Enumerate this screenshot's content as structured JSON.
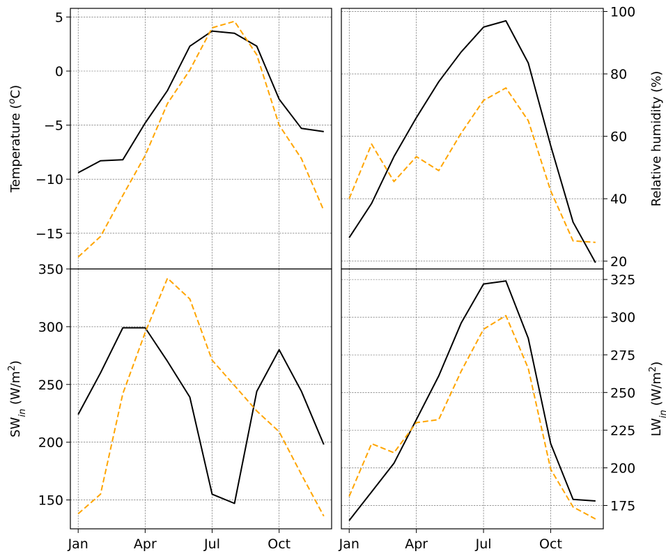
{
  "chart_data": [
    {
      "type": "line",
      "panel": "top-left",
      "ylabel_main": "Temperature (",
      "ylabel_super": "o",
      "ylabel_rest": "C)",
      "ylim": [
        -18.3,
        5.8
      ],
      "yticks": [
        5,
        0,
        -5,
        -10,
        -15
      ],
      "ytick_labels": [
        "5",
        "0",
        "−5",
        "−10",
        "−15"
      ],
      "yaxis_side": "left",
      "x": [
        1,
        2,
        3,
        4,
        5,
        6,
        7,
        8,
        9,
        10,
        11,
        12
      ],
      "series": [
        {
          "color": "#000000",
          "style": "solid",
          "values": [
            -9.4,
            -8.3,
            -8.2,
            -4.8,
            -1.8,
            2.3,
            3.7,
            3.5,
            2.3,
            -2.6,
            -5.3,
            -5.6
          ]
        },
        {
          "color": "#ffa500",
          "style": "dashed",
          "values": [
            -17.2,
            -15.3,
            -11.5,
            -7.8,
            -3.0,
            0.1,
            4.0,
            4.6,
            1.5,
            -5.0,
            -8.1,
            -12.9
          ]
        }
      ],
      "grid": true
    },
    {
      "type": "line",
      "panel": "top-right",
      "ylabel_main": "Relative humidity (%)",
      "ylim": [
        17.5,
        101
      ],
      "yticks": [
        100,
        80,
        60,
        40,
        20
      ],
      "ytick_labels": [
        "100",
        "80",
        "60",
        "40",
        "20"
      ],
      "yaxis_side": "right",
      "x": [
        1,
        2,
        3,
        4,
        5,
        6,
        7,
        8,
        9,
        10,
        11,
        12
      ],
      "series": [
        {
          "color": "#000000",
          "style": "solid",
          "values": [
            27.5,
            38.5,
            53.5,
            66.0,
            77.5,
            87.0,
            95.0,
            97.0,
            83.5,
            57.0,
            32.5,
            19.5
          ]
        },
        {
          "color": "#ffa500",
          "style": "dashed",
          "values": [
            40.0,
            57.5,
            45.5,
            53.5,
            49.0,
            61.0,
            71.5,
            75.5,
            65.0,
            42.5,
            26.5,
            26.0
          ]
        }
      ],
      "grid": true
    },
    {
      "type": "line",
      "panel": "bottom-left",
      "ylabel_main": "SW",
      "ylabel_sub": "in",
      "ylabel_rest": " (W/m",
      "ylabel_super": "2",
      "ylabel_close": ")",
      "ylim": [
        125,
        350
      ],
      "yticks": [
        350,
        300,
        250,
        200,
        150
      ],
      "ytick_labels": [
        "350",
        "300",
        "250",
        "200",
        "150"
      ],
      "yaxis_side": "left",
      "x": [
        1,
        2,
        3,
        4,
        5,
        6,
        7,
        8,
        9,
        10,
        11,
        12
      ],
      "xticks": [
        1,
        4,
        7,
        10
      ],
      "xtick_labels": [
        "Jan",
        "Apr",
        "Jul",
        "Oct"
      ],
      "series": [
        {
          "color": "#000000",
          "style": "solid",
          "values": [
            224,
            260,
            299,
            299,
            270,
            239,
            155,
            147,
            244,
            280,
            244,
            198
          ]
        },
        {
          "color": "#ffa500",
          "style": "dashed",
          "values": [
            138,
            155,
            242,
            295,
            342,
            324,
            271,
            249,
            227,
            209,
            172,
            136
          ]
        }
      ],
      "grid": true
    },
    {
      "type": "line",
      "panel": "bottom-right",
      "ylabel_main": "LW",
      "ylabel_sub": "in",
      "ylabel_rest": " (W/m",
      "ylabel_super": "2",
      "ylabel_close": ")",
      "ylim": [
        159.5,
        332
      ],
      "yticks": [
        325,
        300,
        275,
        250,
        225,
        200,
        175
      ],
      "ytick_labels": [
        "325",
        "300",
        "275",
        "250",
        "225",
        "200",
        "175"
      ],
      "yaxis_side": "right",
      "x": [
        1,
        2,
        3,
        4,
        5,
        6,
        7,
        8,
        9,
        10,
        11,
        12
      ],
      "xticks": [
        1,
        4,
        7,
        10
      ],
      "xtick_labels": [
        "Jan",
        "Apr",
        "Jul",
        "Oct"
      ],
      "series": [
        {
          "color": "#000000",
          "style": "solid",
          "values": [
            165,
            184,
            203,
            232,
            261,
            296,
            322,
            324,
            286,
            216,
            179,
            178
          ]
        },
        {
          "color": "#ffa500",
          "style": "dashed",
          "values": [
            181,
            216,
            210,
            230,
            232,
            264,
            292,
            301,
            266,
            199,
            174,
            166
          ]
        }
      ],
      "grid": true
    }
  ]
}
